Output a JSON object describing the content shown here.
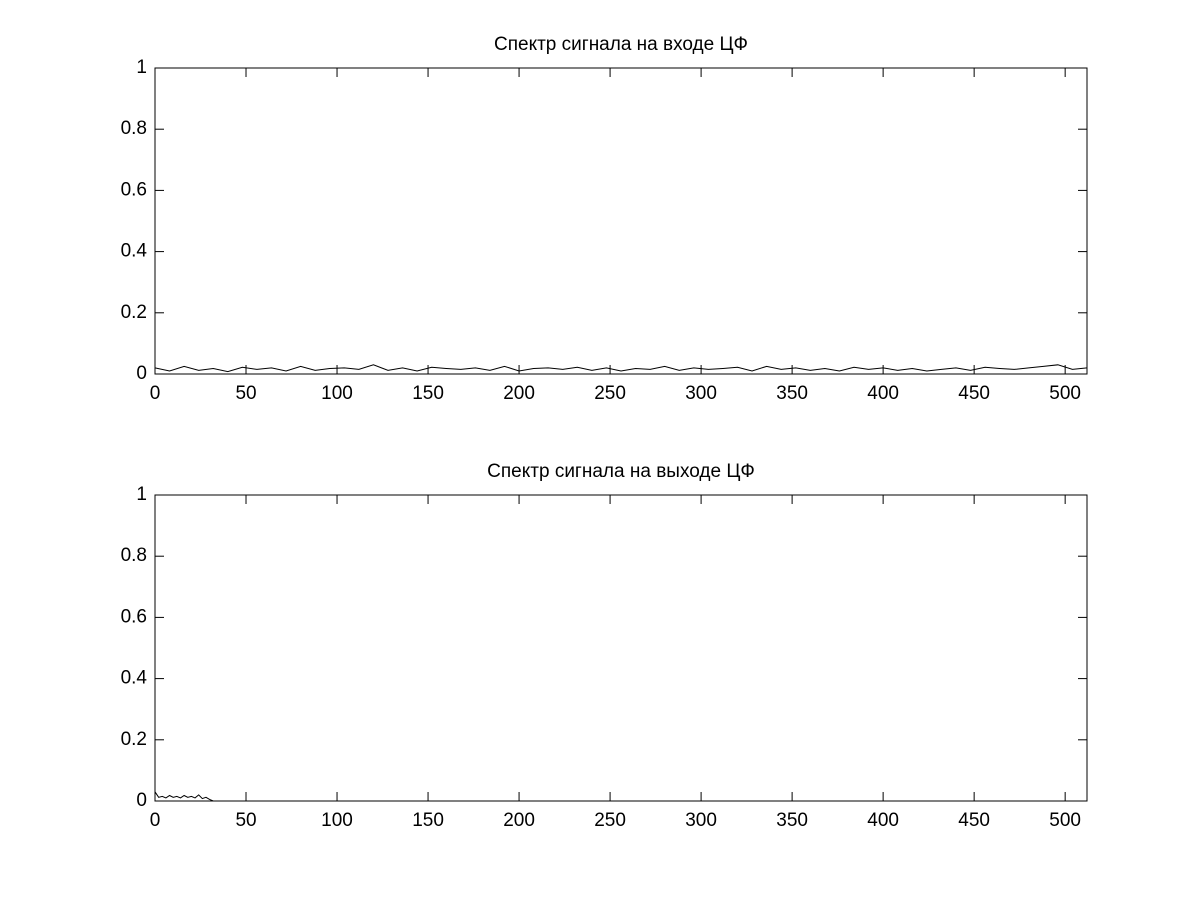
{
  "chart_data": [
    {
      "type": "line",
      "title": "Спектр сигнала на входе ЦФ",
      "color": "#000000",
      "x": [
        0,
        8,
        16,
        24,
        32,
        40,
        48,
        56,
        64,
        72,
        80,
        88,
        96,
        104,
        112,
        120,
        128,
        136,
        144,
        152,
        160,
        168,
        176,
        184,
        192,
        200,
        208,
        216,
        224,
        232,
        240,
        248,
        256,
        264,
        272,
        280,
        288,
        296,
        304,
        312,
        320,
        328,
        336,
        344,
        352,
        360,
        368,
        376,
        384,
        392,
        400,
        408,
        416,
        424,
        432,
        440,
        448,
        456,
        464,
        472,
        480,
        488,
        496,
        504,
        512
      ],
      "values": [
        0.02,
        0.01,
        0.025,
        0.012,
        0.018,
        0.008,
        0.022,
        0.015,
        0.02,
        0.01,
        0.025,
        0.012,
        0.018,
        0.02,
        0.015,
        0.03,
        0.012,
        0.02,
        0.01,
        0.022,
        0.018,
        0.015,
        0.02,
        0.012,
        0.025,
        0.01,
        0.018,
        0.02,
        0.015,
        0.022,
        0.012,
        0.02,
        0.01,
        0.018,
        0.015,
        0.025,
        0.012,
        0.02,
        0.015,
        0.018,
        0.022,
        0.01,
        0.025,
        0.015,
        0.02,
        0.012,
        0.018,
        0.01,
        0.022,
        0.015,
        0.02,
        0.012,
        0.018,
        0.01,
        0.015,
        0.02,
        0.012,
        0.022,
        0.018,
        0.015,
        0.02,
        0.025,
        0.03,
        0.015,
        0.02
      ],
      "xlim": [
        0,
        512
      ],
      "ylim": [
        0,
        1
      ],
      "xticks": [
        0,
        50,
        100,
        150,
        200,
        250,
        300,
        350,
        400,
        450,
        500
      ],
      "yticks": [
        0,
        0.2,
        0.4,
        0.6,
        0.8,
        1
      ]
    },
    {
      "type": "line",
      "title": "Спектр сигнала на выходе ЦФ",
      "color": "#000000",
      "x": [
        0,
        2,
        4,
        6,
        8,
        10,
        12,
        14,
        16,
        18,
        20,
        22,
        24,
        26,
        28,
        30,
        32,
        512
      ],
      "values": [
        0.03,
        0.012,
        0.015,
        0.01,
        0.018,
        0.012,
        0.015,
        0.01,
        0.018,
        0.012,
        0.015,
        0.01,
        0.02,
        0.008,
        0.012,
        0.005,
        0,
        0
      ],
      "xlim": [
        0,
        512
      ],
      "ylim": [
        0,
        1
      ],
      "xticks": [
        0,
        50,
        100,
        150,
        200,
        250,
        300,
        350,
        400,
        450,
        500
      ],
      "yticks": [
        0,
        0.2,
        0.4,
        0.6,
        0.8,
        1
      ]
    }
  ]
}
